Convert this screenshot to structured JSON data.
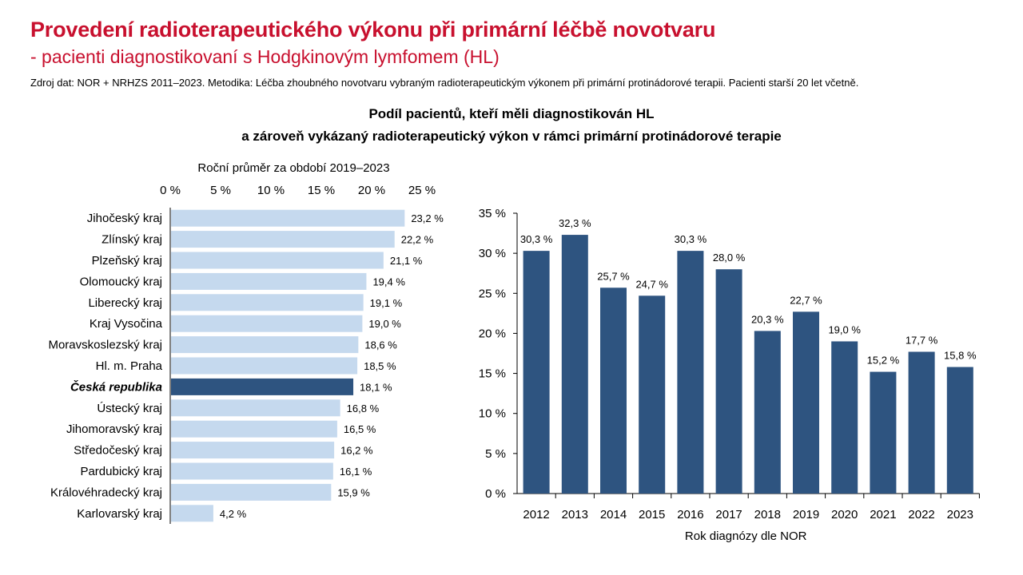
{
  "header": {
    "title": "Provedení radioterapeutického výkonu při primární léčbě novotvaru",
    "subtitle": "- pacienti diagnostikovaní s Hodgkinovým lymfomem (HL)",
    "source": "Zdroj dat: NOR + NRHZS 2011–2023. Metodika: Léčba zhoubného novotvaru vybraným radioterapeutickým výkonem při primární protinádorové terapii. Pacienti starší 20 let včetně.",
    "chart_title_line1": "Podíl pacientů, kteří měli diagnostikován HL",
    "chart_title_line2": "a zároveň vykázaný radioterapeutický výkon v rámci primární protinádorové terapie"
  },
  "colors": {
    "title": "#c8102e",
    "region_bar": "#c5d9ee",
    "national_bar": "#2e5480",
    "year_bar": "#2e5480"
  },
  "chart_data": [
    {
      "type": "bar",
      "orientation": "horizontal",
      "title": "Roční průměr za období 2019–2023",
      "xlim": [
        0,
        25
      ],
      "x_ticks": [
        "0 %",
        "5 %",
        "10 %",
        "15 %",
        "20 %",
        "25 %"
      ],
      "categories": [
        "Jihočeský kraj",
        "Zlínský kraj",
        "Plzeňský kraj",
        "Olomoucký kraj",
        "Liberecký kraj",
        "Kraj Vysočina",
        "Moravskoslezský kraj",
        "Hl. m. Praha",
        "Česká republika",
        "Ústecký kraj",
        "Jihomoravský kraj",
        "Středočeský kraj",
        "Pardubický kraj",
        "Královéhradecký kraj",
        "Karlovarský kraj"
      ],
      "values": [
        23.2,
        22.2,
        21.1,
        19.4,
        19.1,
        19.0,
        18.6,
        18.5,
        18.1,
        16.8,
        16.5,
        16.2,
        16.1,
        15.9,
        4.2
      ],
      "labels": [
        "23,2 %",
        "22,2 %",
        "21,1 %",
        "19,4 %",
        "19,1 %",
        "19,0 %",
        "18,6 %",
        "18,5 %",
        "18,1 %",
        "16,8 %",
        "16,5 %",
        "16,2 %",
        "16,1 %",
        "15,9 %",
        "4,2 %"
      ],
      "highlight": "Česká republika",
      "grid": false
    },
    {
      "type": "bar",
      "orientation": "vertical",
      "xlabel": "Rok diagnózy dle NOR",
      "ylim": [
        0,
        35
      ],
      "y_ticks": [
        "0 %",
        "5 %",
        "10 %",
        "15 %",
        "20 %",
        "25 %",
        "30 %",
        "35 %"
      ],
      "categories": [
        "2012",
        "2013",
        "2014",
        "2015",
        "2016",
        "2017",
        "2018",
        "2019",
        "2020",
        "2021",
        "2022",
        "2023"
      ],
      "values": [
        30.3,
        32.3,
        25.7,
        24.7,
        30.3,
        28.0,
        20.3,
        22.7,
        19.0,
        15.2,
        17.7,
        15.8
      ],
      "labels": [
        "30,3 %",
        "32,3 %",
        "25,7 %",
        "24,7 %",
        "30,3 %",
        "28,0 %",
        "20,3 %",
        "22,7 %",
        "19,0 %",
        "15,2 %",
        "17,7 %",
        "15,8 %"
      ],
      "grid": false
    }
  ]
}
